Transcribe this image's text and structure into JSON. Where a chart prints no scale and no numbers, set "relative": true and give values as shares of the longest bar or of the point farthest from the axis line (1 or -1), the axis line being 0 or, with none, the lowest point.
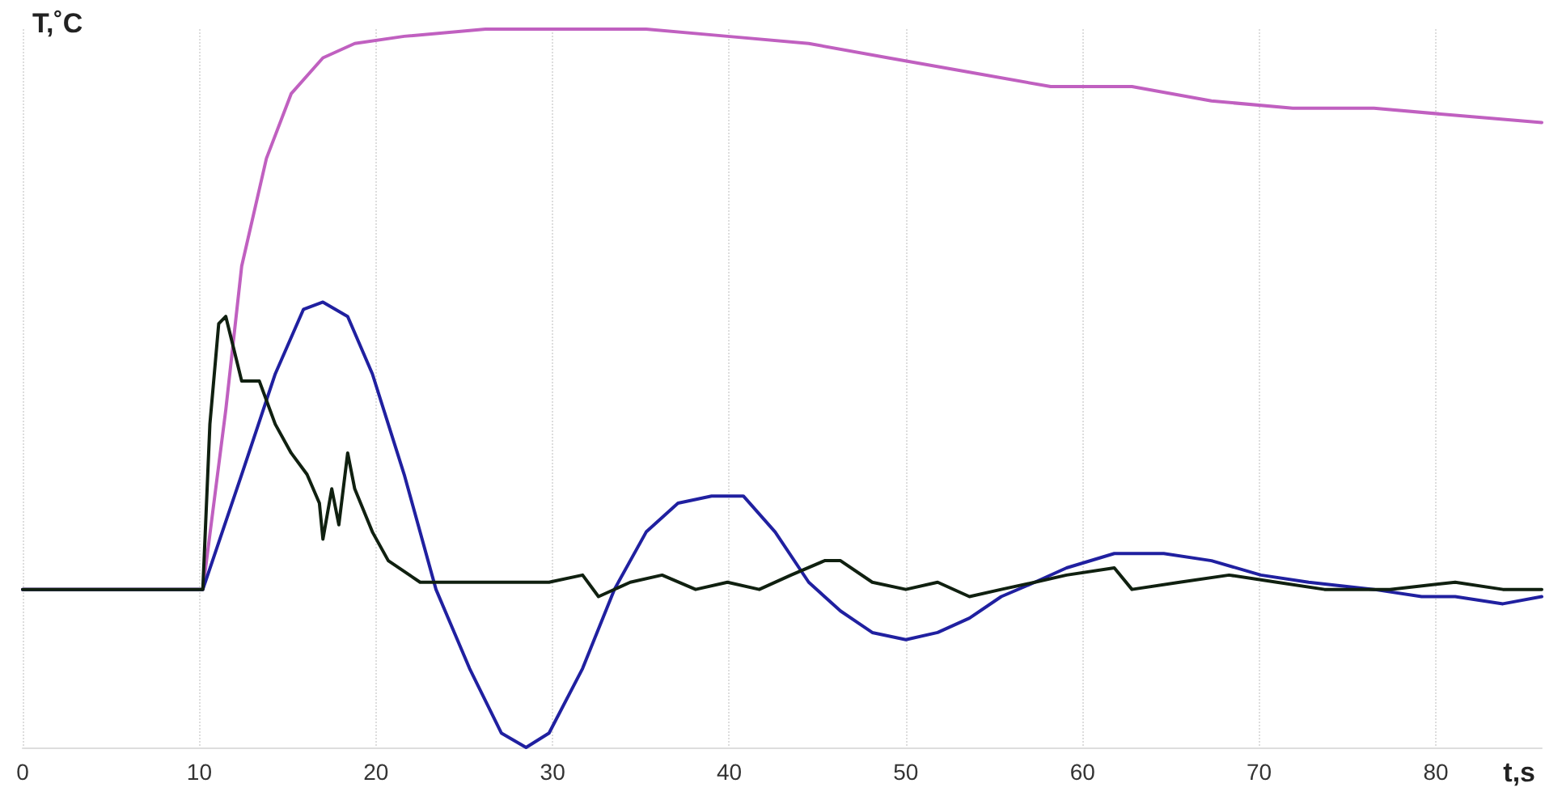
{
  "chart_data": {
    "type": "line",
    "relative": true,
    "xlabel": "t,s",
    "ylabel": "T,˚C",
    "xlim": [
      0,
      86
    ],
    "xticks": [
      0,
      10,
      20,
      30,
      40,
      50,
      60,
      70,
      80
    ],
    "grid": "x",
    "marker": "none",
    "series": [
      {
        "color": "#c060c0",
        "x": [
          0,
          10.2,
          11.5,
          12.4,
          13.8,
          15.2,
          17.0,
          18.8,
          21.6,
          26.2,
          30.7,
          35.3,
          39.9,
          44.5,
          49.0,
          53.6,
          58.2,
          62.8,
          67.3,
          71.9,
          76.5,
          81.1,
          86
        ],
        "values": [
          0.22,
          0.22,
          0.47,
          0.67,
          0.82,
          0.91,
          0.96,
          0.98,
          0.99,
          1.0,
          1.0,
          1.0,
          0.99,
          0.98,
          0.96,
          0.94,
          0.92,
          0.92,
          0.9,
          0.89,
          0.89,
          0.88,
          0.87
        ]
      },
      {
        "color": "#2020a0",
        "x": [
          0,
          10.2,
          12.4,
          14.3,
          15.9,
          17.0,
          18.4,
          19.8,
          21.6,
          23.4,
          25.3,
          27.1,
          28.5,
          29.8,
          31.7,
          33.5,
          35.3,
          37.1,
          39.0,
          40.8,
          42.6,
          44.5,
          46.3,
          48.1,
          50.0,
          51.8,
          53.6,
          55.4,
          57.3,
          59.1,
          61.8,
          64.6,
          67.3,
          70.1,
          72.8,
          76.5,
          79.2,
          81.1,
          83.8,
          86
        ],
        "values": [
          0.22,
          0.22,
          0.38,
          0.52,
          0.61,
          0.62,
          0.6,
          0.52,
          0.38,
          0.22,
          0.11,
          0.02,
          0,
          0.02,
          0.11,
          0.22,
          0.3,
          0.34,
          0.35,
          0.35,
          0.3,
          0.23,
          0.19,
          0.16,
          0.15,
          0.16,
          0.18,
          0.21,
          0.23,
          0.25,
          0.27,
          0.27,
          0.26,
          0.24,
          0.23,
          0.22,
          0.21,
          0.21,
          0.2,
          0.21
        ]
      },
      {
        "color": "#102010",
        "x": [
          0,
          10.2,
          10.6,
          11.1,
          11.5,
          12.0,
          12.4,
          13.4,
          14.3,
          15.2,
          16.1,
          16.8,
          17.0,
          17.5,
          17.9,
          18.4,
          18.8,
          19.8,
          20.7,
          22.5,
          26.2,
          29.8,
          31.7,
          32.6,
          34.4,
          36.2,
          38.1,
          39.9,
          41.7,
          43.5,
          45.4,
          46.3,
          48.1,
          50.0,
          51.8,
          53.6,
          55.4,
          57.3,
          59.1,
          61.8,
          62.8,
          65.5,
          68.3,
          71.0,
          73.7,
          77.4,
          81.1,
          83.8,
          86
        ],
        "values": [
          0.22,
          0.22,
          0.45,
          0.59,
          0.6,
          0.55,
          0.51,
          0.51,
          0.45,
          0.41,
          0.38,
          0.34,
          0.29,
          0.36,
          0.31,
          0.41,
          0.36,
          0.3,
          0.26,
          0.23,
          0.23,
          0.23,
          0.24,
          0.21,
          0.23,
          0.24,
          0.22,
          0.23,
          0.22,
          0.24,
          0.26,
          0.26,
          0.23,
          0.22,
          0.23,
          0.21,
          0.22,
          0.23,
          0.24,
          0.25,
          0.22,
          0.23,
          0.24,
          0.23,
          0.22,
          0.22,
          0.23,
          0.22,
          0.22
        ]
      }
    ]
  }
}
